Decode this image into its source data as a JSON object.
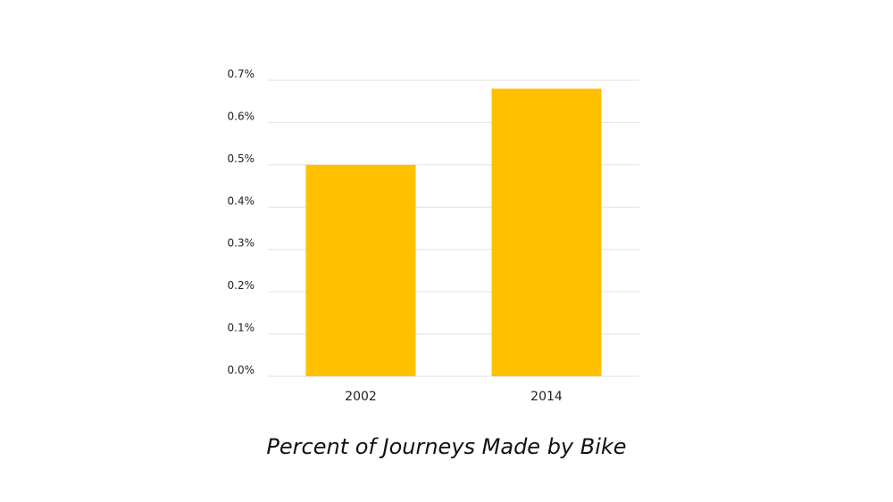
{
  "chart_data": {
    "type": "bar",
    "title": "Percent of Journeys Made by Bike",
    "categories": [
      "2002",
      "2014"
    ],
    "values": [
      0.5,
      0.68
    ],
    "ylim": [
      0,
      0.7
    ],
    "yticks": [
      0.0,
      0.1,
      0.2,
      0.3,
      0.4,
      0.5,
      0.6,
      0.7
    ],
    "ytick_labels": [
      "0.0%",
      "0.1%",
      "0.2%",
      "0.3%",
      "0.4%",
      "0.5%",
      "0.6%",
      "0.7%"
    ],
    "bar_color": "#FFC000",
    "grid_color": "#E0E0E0",
    "grid": true,
    "xlabel": "",
    "ylabel": ""
  }
}
